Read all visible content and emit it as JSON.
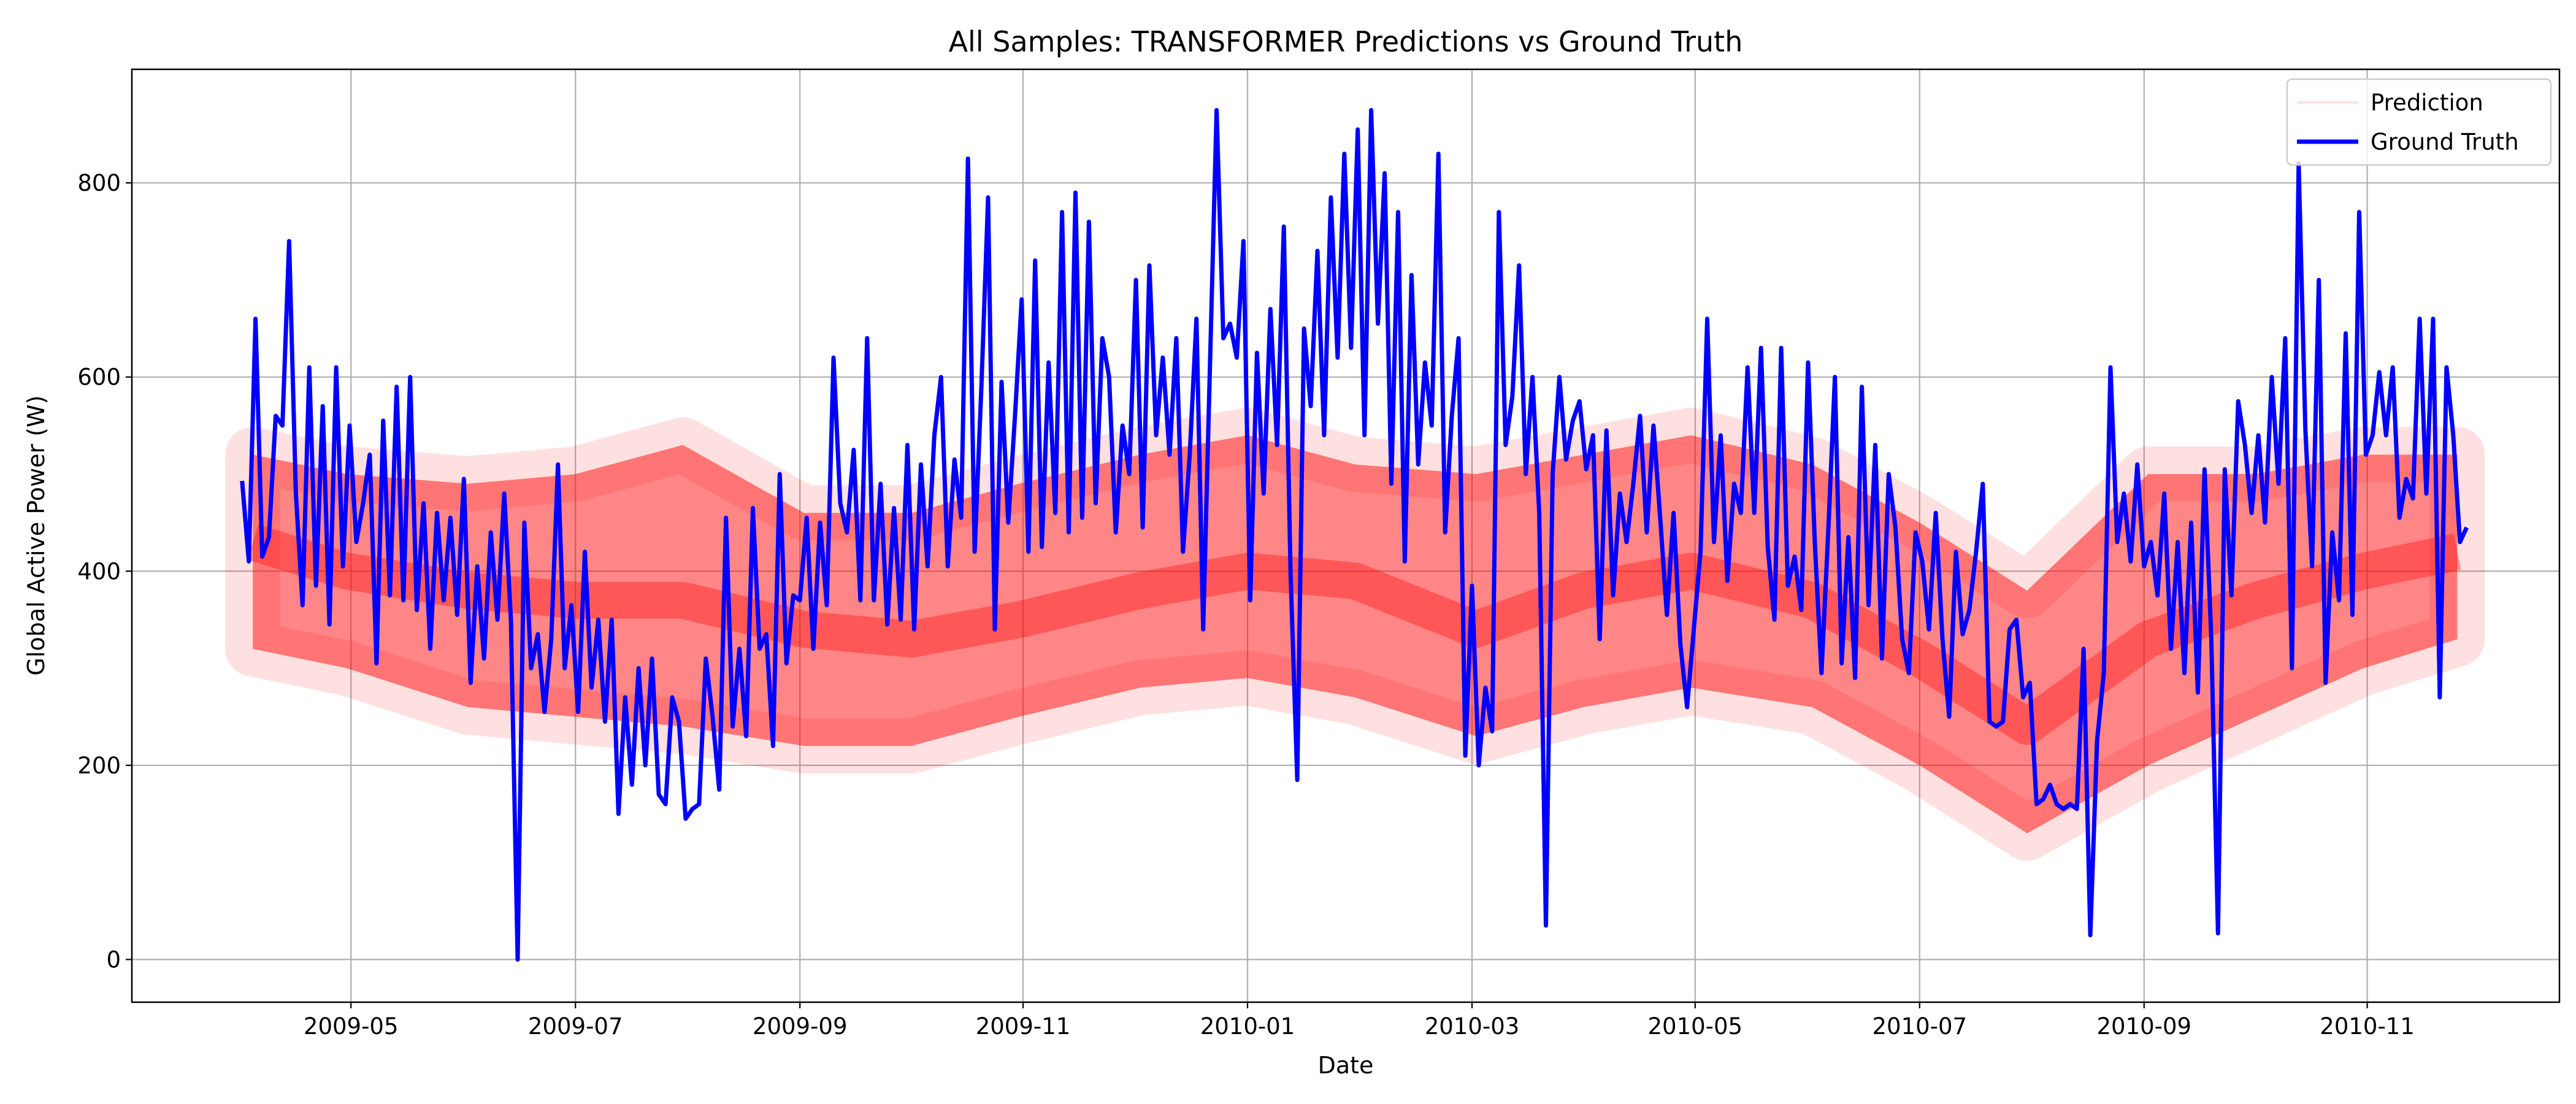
{
  "chart_data": {
    "type": "line",
    "title": "All Samples: TRANSFORMER Predictions vs Ground Truth",
    "x_label": "Date",
    "y_label": "Global Active Power (W)",
    "xlim": [
      2009.17,
      2010.976
    ],
    "ylim": [
      -44,
      917
    ],
    "xticks": [
      {
        "value": 2009.333,
        "label": "2009-05"
      },
      {
        "value": 2009.5,
        "label": "2009-07"
      },
      {
        "value": 2009.667,
        "label": "2009-09"
      },
      {
        "value": 2009.833,
        "label": "2009-11"
      },
      {
        "value": 2010.0,
        "label": "2010-01"
      },
      {
        "value": 2010.167,
        "label": "2010-03"
      },
      {
        "value": 2010.333,
        "label": "2010-05"
      },
      {
        "value": 2010.5,
        "label": "2010-07"
      },
      {
        "value": 2010.667,
        "label": "2010-09"
      },
      {
        "value": 2010.833,
        "label": "2010-11"
      }
    ],
    "yticks": [
      0,
      200,
      400,
      600,
      800
    ],
    "grid": true,
    "legend": "upper right",
    "x": [
      2009.252,
      2009.257,
      2009.262,
      2009.267,
      2009.272,
      2009.277,
      2009.282,
      2009.287,
      2009.292,
      2009.297,
      2009.302,
      2009.307,
      2009.312,
      2009.317,
      2009.322,
      2009.327,
      2009.332,
      2009.337,
      2009.342,
      2009.347,
      2009.352,
      2009.357,
      2009.362,
      2009.367,
      2009.372,
      2009.377,
      2009.382,
      2009.387,
      2009.392,
      2009.397,
      2009.402,
      2009.407,
      2009.412,
      2009.417,
      2009.422,
      2009.427,
      2009.432,
      2009.437,
      2009.442,
      2009.447,
      2009.452,
      2009.457,
      2009.462,
      2009.467,
      2009.472,
      2009.477,
      2009.482,
      2009.487,
      2009.492,
      2009.497,
      2009.502,
      2009.507,
      2009.512,
      2009.517,
      2009.522,
      2009.527,
      2009.532,
      2009.537,
      2009.542,
      2009.547,
      2009.552,
      2009.557,
      2009.562,
      2009.567,
      2009.572,
      2009.577,
      2009.582,
      2009.587,
      2009.592,
      2009.597,
      2009.602,
      2009.607,
      2009.612,
      2009.617,
      2009.622,
      2009.627,
      2009.632,
      2009.637,
      2009.642,
      2009.647,
      2009.652,
      2009.657,
      2009.662,
      2009.667,
      2009.672,
      2009.677,
      2009.682,
      2009.687,
      2009.692,
      2009.697,
      2009.702,
      2009.707,
      2009.712,
      2009.717,
      2009.722,
      2009.727,
      2009.732,
      2009.737,
      2009.742,
      2009.747,
      2009.752,
      2009.757,
      2009.762,
      2009.767,
      2009.772,
      2009.777,
      2009.782,
      2009.787,
      2009.792,
      2009.797,
      2009.802,
      2009.807,
      2009.812,
      2009.817,
      2009.822,
      2009.827,
      2009.832,
      2009.837,
      2009.842,
      2009.847,
      2009.852,
      2009.857,
      2009.862,
      2009.867,
      2009.872,
      2009.877,
      2009.882,
      2009.887,
      2009.892,
      2009.897,
      2009.902,
      2009.907,
      2009.912,
      2009.917,
      2009.922,
      2009.927,
      2009.932,
      2009.937,
      2009.942,
      2009.947,
      2009.952,
      2009.957,
      2009.962,
      2009.967,
      2009.972,
      2009.977,
      2009.982,
      2009.987,
      2009.992,
      2009.997,
      2010.002,
      2010.007,
      2010.012,
      2010.017,
      2010.022,
      2010.027,
      2010.032,
      2010.037,
      2010.042,
      2010.047,
      2010.052,
      2010.057,
      2010.062,
      2010.067,
      2010.072,
      2010.077,
      2010.082,
      2010.087,
      2010.092,
      2010.097,
      2010.102,
      2010.107,
      2010.112,
      2010.117,
      2010.122,
      2010.127,
      2010.132,
      2010.137,
      2010.142,
      2010.147,
      2010.152,
      2010.157,
      2010.162,
      2010.167,
      2010.172,
      2010.177,
      2010.182,
      2010.187,
      2010.192,
      2010.197,
      2010.202,
      2010.207,
      2010.212,
      2010.217,
      2010.222,
      2010.227,
      2010.232,
      2010.237,
      2010.242,
      2010.247,
      2010.252,
      2010.257,
      2010.262,
      2010.267,
      2010.272,
      2010.277,
      2010.282,
      2010.287,
      2010.292,
      2010.297,
      2010.302,
      2010.307,
      2010.312,
      2010.317,
      2010.322,
      2010.327,
      2010.332,
      2010.337,
      2010.342,
      2010.347,
      2010.352,
      2010.357,
      2010.362,
      2010.367,
      2010.372,
      2010.377,
      2010.382,
      2010.387,
      2010.392,
      2010.397,
      2010.402,
      2010.407,
      2010.412,
      2010.417,
      2010.422,
      2010.427,
      2010.432,
      2010.437,
      2010.442,
      2010.447,
      2010.452,
      2010.457,
      2010.462,
      2010.467,
      2010.472,
      2010.477,
      2010.482,
      2010.487,
      2010.492,
      2010.497,
      2010.502,
      2010.507,
      2010.512,
      2010.517,
      2010.522,
      2010.527,
      2010.532,
      2010.537,
      2010.542,
      2010.547,
      2010.552,
      2010.557,
      2010.562,
      2010.567,
      2010.572,
      2010.577,
      2010.582,
      2010.587,
      2010.592,
      2010.597,
      2010.602,
      2010.607,
      2010.612,
      2010.617,
      2010.622,
      2010.627,
      2010.632,
      2010.637,
      2010.642,
      2010.647,
      2010.652,
      2010.657,
      2010.662,
      2010.667,
      2010.672,
      2010.677,
      2010.682,
      2010.687,
      2010.692,
      2010.697,
      2010.702,
      2010.707,
      2010.712,
      2010.717,
      2010.722,
      2010.727,
      2010.732,
      2010.737,
      2010.742,
      2010.747,
      2010.752,
      2010.757,
      2010.762,
      2010.767,
      2010.772,
      2010.777,
      2010.782,
      2010.787,
      2010.792,
      2010.797,
      2010.802,
      2010.807,
      2010.812,
      2010.817,
      2010.822,
      2010.827,
      2010.832,
      2010.837,
      2010.842,
      2010.847,
      2010.852,
      2010.857,
      2010.862,
      2010.867,
      2010.872,
      2010.877,
      2010.882,
      2010.887,
      2010.892,
      2010.897,
      2010.902,
      2010.907
    ],
    "series": [
      {
        "name": "Prediction",
        "color": "#ff0000",
        "x": [
          2009.26,
          2009.33,
          2009.42,
          2009.5,
          2009.58,
          2009.67,
          2009.75,
          2009.83,
          2009.92,
          2010.0,
          2010.08,
          2010.17,
          2010.25,
          2010.33,
          2010.42,
          2010.5,
          2010.58,
          2010.67,
          2010.75,
          2010.83,
          2010.9
        ],
        "values": [
          430,
          400,
          380,
          370,
          370,
          340,
          330,
          350,
          380,
          400,
          390,
          340,
          380,
          400,
          370,
          310,
          240,
          330,
          370,
          400,
          420
        ],
        "low": [
          320,
          300,
          260,
          250,
          240,
          220,
          220,
          250,
          280,
          290,
          270,
          230,
          260,
          280,
          260,
          200,
          130,
          200,
          250,
          300,
          330
        ],
        "high": [
          520,
          500,
          490,
          500,
          530,
          460,
          460,
          490,
          520,
          540,
          510,
          500,
          520,
          540,
          510,
          450,
          380,
          500,
          500,
          520,
          520
        ]
      },
      {
        "name": "Ground Truth",
        "color": "#0000ff",
        "values": [
          493,
          410,
          660,
          415,
          435,
          560,
          550,
          740,
          480,
          365,
          610,
          385,
          570,
          345,
          610,
          405,
          550,
          430,
          470,
          520,
          305,
          555,
          375,
          590,
          370,
          600,
          360,
          470,
          320,
          460,
          370,
          455,
          355,
          495,
          285,
          405,
          310,
          440,
          350,
          480,
          350,
          0,
          450,
          300,
          335,
          255,
          330,
          510,
          300,
          365,
          255,
          420,
          280,
          350,
          245,
          350,
          150,
          270,
          180,
          300,
          200,
          310,
          170,
          160,
          270,
          245,
          145,
          155,
          160,
          310,
          250,
          175,
          455,
          240,
          320,
          230,
          465,
          320,
          335,
          220,
          500,
          305,
          375,
          370,
          455,
          320,
          450,
          365,
          620,
          470,
          440,
          525,
          370,
          640,
          370,
          490,
          345,
          465,
          350,
          530,
          340,
          510,
          405,
          540,
          600,
          405,
          515,
          455,
          825,
          420,
          590,
          785,
          340,
          595,
          450,
          560,
          680,
          420,
          720,
          425,
          615,
          460,
          770,
          440,
          790,
          455,
          760,
          470,
          640,
          600,
          440,
          550,
          500,
          700,
          445,
          715,
          540,
          620,
          520,
          640,
          420,
          520,
          660,
          340,
          610,
          875,
          640,
          655,
          620,
          740,
          370,
          625,
          480,
          670,
          530,
          755,
          400,
          185,
          650,
          570,
          730,
          540,
          785,
          620,
          830,
          630,
          855,
          540,
          875,
          655,
          810,
          490,
          770,
          410,
          705,
          510,
          615,
          550,
          830,
          440,
          560,
          640,
          210,
          385,
          200,
          280,
          235,
          770,
          530,
          580,
          715,
          500,
          600,
          460,
          35,
          500,
          600,
          515,
          555,
          575,
          505,
          540,
          330,
          545,
          375,
          480,
          430,
          490,
          560,
          440,
          550,
          455,
          355,
          460,
          325,
          260,
          340,
          420,
          660,
          430,
          540,
          390,
          490,
          460,
          610,
          460,
          630,
          425,
          350,
          630,
          385,
          415,
          360,
          615,
          430,
          295,
          440,
          600,
          305,
          435,
          290,
          590,
          365,
          530,
          310,
          500,
          445,
          330,
          295,
          440,
          410,
          340,
          460,
          330,
          250,
          420,
          335,
          360,
          420,
          490,
          245,
          240,
          245,
          340,
          350,
          270,
          285,
          160,
          165,
          180,
          160,
          155,
          160,
          155,
          320,
          25,
          225,
          295,
          610,
          430,
          480,
          410,
          510,
          405,
          430,
          375,
          480,
          320,
          430,
          295,
          450,
          275,
          505,
          330,
          27,
          505,
          375,
          575,
          530,
          460,
          540,
          450,
          600,
          490,
          640,
          300,
          820,
          545,
          405,
          700,
          285,
          440,
          370,
          645,
          355,
          770,
          520,
          540,
          605,
          540,
          610,
          455,
          495,
          475,
          660,
          480,
          660,
          270,
          610,
          540,
          430,
          445
        ]
      }
    ]
  }
}
